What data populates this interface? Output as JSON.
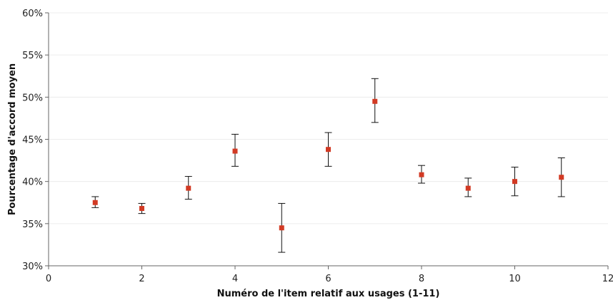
{
  "chart_data": {
    "type": "scatter",
    "title": "",
    "xlabel": "Numéro de l'item relatif aux usages (1-11)",
    "ylabel": "Pourcentage d'accord moyen",
    "xlim": [
      0,
      12
    ],
    "ylim": [
      30,
      60
    ],
    "x_ticks": [
      0,
      2,
      4,
      6,
      8,
      10,
      12
    ],
    "x_tick_labels": [
      "0",
      "2",
      "4",
      "6",
      "8",
      "10",
      "12"
    ],
    "y_ticks": [
      30,
      35,
      40,
      45,
      50,
      55,
      60
    ],
    "y_tick_labels": [
      "30%",
      "35%",
      "40%",
      "45%",
      "50%",
      "55%",
      "60%"
    ],
    "grid": "horizontal",
    "legend": "none",
    "marker_color": "#d23a24",
    "errorbar_color": "#111111",
    "points": [
      {
        "x": 1,
        "y": 37.5,
        "lower": 36.9,
        "upper": 38.2
      },
      {
        "x": 2,
        "y": 36.8,
        "lower": 36.2,
        "upper": 37.4
      },
      {
        "x": 3,
        "y": 39.2,
        "lower": 37.9,
        "upper": 40.6
      },
      {
        "x": 4,
        "y": 43.6,
        "lower": 41.8,
        "upper": 45.6
      },
      {
        "x": 5,
        "y": 34.5,
        "lower": 31.6,
        "upper": 37.4
      },
      {
        "x": 6,
        "y": 43.8,
        "lower": 41.8,
        "upper": 45.8
      },
      {
        "x": 7,
        "y": 49.5,
        "lower": 47.0,
        "upper": 52.2
      },
      {
        "x": 8,
        "y": 40.8,
        "lower": 39.8,
        "upper": 41.9
      },
      {
        "x": 9,
        "y": 39.2,
        "lower": 38.2,
        "upper": 40.4
      },
      {
        "x": 10,
        "y": 40.0,
        "lower": 38.3,
        "upper": 41.7
      },
      {
        "x": 11,
        "y": 40.5,
        "lower": 38.2,
        "upper": 42.8
      }
    ]
  }
}
